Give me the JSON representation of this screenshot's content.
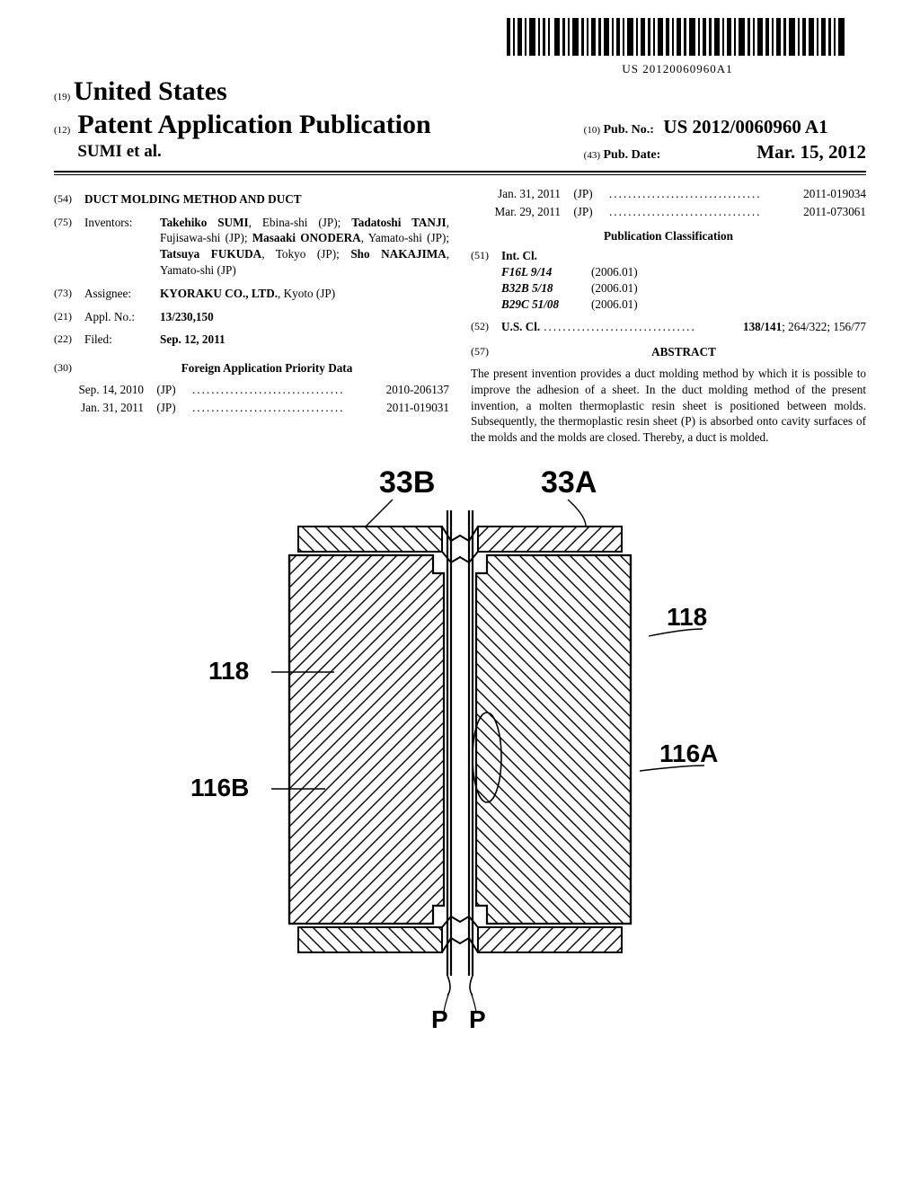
{
  "barcode": {
    "caption": "US 20120060960A1"
  },
  "header": {
    "country_code": "(19)",
    "country": "United States",
    "pub_type_code": "(12)",
    "pub_type": "Patent Application Publication",
    "authors_line": "SUMI et al.",
    "pubno_code": "(10)",
    "pubno_label": "Pub. No.:",
    "pubno_value": "US 2012/0060960 A1",
    "pubdate_code": "(43)",
    "pubdate_label": "Pub. Date:",
    "pubdate_value": "Mar. 15, 2012"
  },
  "left": {
    "title_code": "(54)",
    "title": "DUCT MOLDING METHOD AND DUCT",
    "inventors_code": "(75)",
    "inventors_label": "Inventors:",
    "inventors_html": [
      {
        "name": "Takehiko SUMI",
        "rest": ", Ebina-shi (JP); "
      },
      {
        "name": "Tadatoshi TANJI",
        "rest": ", Fujisawa-shi (JP); "
      },
      {
        "name": "Masaaki ONODERA",
        "rest": ", Yamato-shi (JP); "
      },
      {
        "name": "Tatsuya FUKUDA",
        "rest": ", Tokyo (JP); "
      },
      {
        "name": "Sho NAKAJIMA",
        "rest": ", Yamato-shi (JP)"
      }
    ],
    "assignee_code": "(73)",
    "assignee_label": "Assignee:",
    "assignee_name": "KYORAKU CO., LTD.",
    "assignee_rest": ", Kyoto (JP)",
    "applno_code": "(21)",
    "applno_label": "Appl. No.:",
    "applno_value": "13/230,150",
    "filed_code": "(22)",
    "filed_label": "Filed:",
    "filed_value": "Sep. 12, 2011",
    "foreign_code": "(30)",
    "foreign_label": "Foreign Application Priority Data",
    "priority_left": [
      {
        "date": "Sep. 14, 2010",
        "country": "(JP)",
        "num": "2010-206137"
      },
      {
        "date": "Jan. 31, 2011",
        "country": "(JP)",
        "num": "2011-019031"
      }
    ]
  },
  "right": {
    "priority_right": [
      {
        "date": "Jan. 31, 2011",
        "country": "(JP)",
        "num": "2011-019034"
      },
      {
        "date": "Mar. 29, 2011",
        "country": "(JP)",
        "num": "2011-073061"
      }
    ],
    "pubclass_label": "Publication Classification",
    "intcl_code": "(51)",
    "intcl_label": "Int. Cl.",
    "intcl": [
      {
        "sym": "F16L 9/14",
        "year": "(2006.01)"
      },
      {
        "sym": "B32B 5/18",
        "year": "(2006.01)"
      },
      {
        "sym": "B29C 51/08",
        "year": "(2006.01)"
      }
    ],
    "uscl_code": "(52)",
    "uscl_label": "U.S. Cl.",
    "uscl_value": "138/141",
    "uscl_rest": "; 264/322; 156/77",
    "abstract_code": "(57)",
    "abstract_label": "ABSTRACT",
    "abstract_text": "The present invention provides a duct molding method by which it is possible to improve the adhesion of a sheet. In the duct molding method of the present invention, a molten thermoplastic resin sheet is positioned between molds. Subsequently, the thermoplastic resin sheet (P) is absorbed onto cavity surfaces of the molds and the molds are closed. Thereby, a duct is molded."
  },
  "figure": {
    "labels": {
      "l33B": "33B",
      "l33A": "33A",
      "l118L": "118",
      "l118R": "118",
      "l116A": "116A",
      "l116B": "116B",
      "lP1": "P",
      "lP2": "P"
    },
    "style": {
      "stroke": "#000000",
      "thin": 1.2,
      "thick": 2.2,
      "hatch_spacing": 14,
      "background": "#ffffff"
    }
  },
  "dots": "................................"
}
